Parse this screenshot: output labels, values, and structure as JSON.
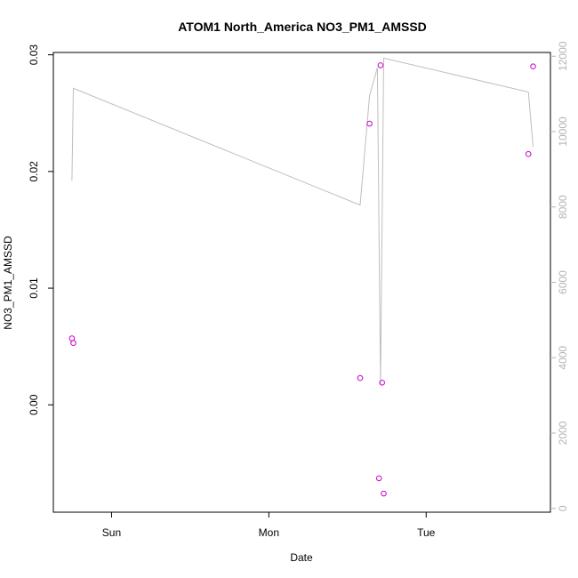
{
  "chart_data": {
    "type": "scatter",
    "title": "ATOM1 North_America NO3_PM1_AMSSD",
    "xlabel": "Date",
    "ylabel": "NO3_PM1_AMSSD",
    "x_ticks": [
      {
        "label": "Sun",
        "value": 0
      },
      {
        "label": "Mon",
        "value": 1
      },
      {
        "label": "Tue",
        "value": 2
      }
    ],
    "xlim": [
      -0.37,
      2.79
    ],
    "ylim": [
      -0.0092,
      0.0302
    ],
    "y_ticks": [
      {
        "label": "0.00",
        "value": 0.0
      },
      {
        "label": "0.01",
        "value": 0.01
      },
      {
        "label": "0.02",
        "value": 0.02
      },
      {
        "label": "0.03",
        "value": 0.03
      }
    ],
    "y2lim": [
      -100,
      12100
    ],
    "y2_ticks": [
      {
        "label": "0",
        "value": 0
      },
      {
        "label": "2000",
        "value": 2000
      },
      {
        "label": "4000",
        "value": 4000
      },
      {
        "label": "6000",
        "value": 6000
      },
      {
        "label": "8000",
        "value": 8000
      },
      {
        "label": "10000",
        "value": 10000
      },
      {
        "label": "12000",
        "value": 12000
      }
    ],
    "grid": false,
    "points": {
      "color": "#cc00cc",
      "x": [
        -0.252,
        -0.243,
        1.58,
        1.64,
        1.7,
        1.71,
        1.72,
        1.73,
        2.65,
        2.68
      ],
      "y": [
        0.0057,
        0.0053,
        0.0023,
        0.0241,
        -0.0063,
        0.0291,
        0.0019,
        -0.0076,
        0.0215,
        0.029
      ]
    },
    "line": {
      "color": "#bebebe",
      "axis": "right",
      "x": [
        -0.252,
        -0.243,
        1.58,
        1.64,
        1.69,
        1.71,
        1.73,
        2.65,
        2.68
      ],
      "y": [
        8700,
        11150,
        8050,
        10950,
        11700,
        3300,
        11950,
        11050,
        9600
      ]
    }
  }
}
